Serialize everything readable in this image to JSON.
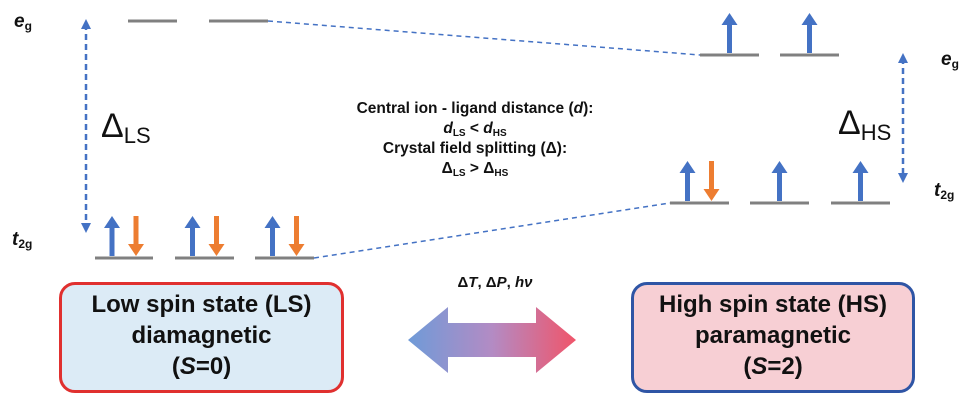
{
  "colors": {
    "spin_up": "#4472c4",
    "spin_down": "#ed7d31",
    "level": "#808080",
    "ls_border": "#e0302f",
    "ls_fill": "#dcebf6",
    "hs_border": "#2f55a5",
    "hs_fill": "#f7cfd4"
  },
  "labels": {
    "eg_left": {
      "main": "e",
      "sub": "g"
    },
    "t2g_left": {
      "main": "t",
      "sub": "2g"
    },
    "eg_right": {
      "main": "e",
      "sub": "g"
    },
    "t2g_right": {
      "main": "t",
      "sub": "2g"
    },
    "delta_ls": {
      "symbol": "Δ",
      "sub": "LS"
    },
    "delta_hs": {
      "symbol": "Δ",
      "sub": "HS"
    }
  },
  "center": {
    "line1_prefix": "Central ion - ligand distance (",
    "line1_var": "d",
    "line1_suffix": "):",
    "line2": {
      "a": "d",
      "a_sub": "LS",
      "op": " < ",
      "b": "d",
      "b_sub": "HS"
    },
    "line3": "Crystal field splitting (Δ):",
    "line4": {
      "a": "Δ",
      "a_sub": "LS",
      "op": " > ",
      "b": "Δ",
      "b_sub": "HS"
    }
  },
  "stimuli": {
    "t1": "Δ",
    "v1": "T",
    "sep1": ", Δ",
    "v2": "P",
    "sep2": ", ",
    "v3": "hν"
  },
  "ls_box": {
    "line1": "Low spin state (LS)",
    "line2": "diamagnetic",
    "line3_open": "(",
    "line3_var": "S",
    "line3_rest": "=0)"
  },
  "hs_box": {
    "line1": "High spin state (HS)",
    "line2": "paramagnetic",
    "line3_open": "(",
    "line3_var": "S",
    "line3_rest": "=2)"
  },
  "occupancy": {
    "ls_eg": [
      [],
      []
    ],
    "ls_t2g": [
      [
        "up",
        "down"
      ],
      [
        "up",
        "down"
      ],
      [
        "up",
        "down"
      ]
    ],
    "hs_eg": [
      [
        "up"
      ],
      [
        "up"
      ]
    ],
    "hs_t2g": [
      [
        "up",
        "down"
      ],
      [
        "up"
      ],
      [
        "up"
      ]
    ]
  }
}
